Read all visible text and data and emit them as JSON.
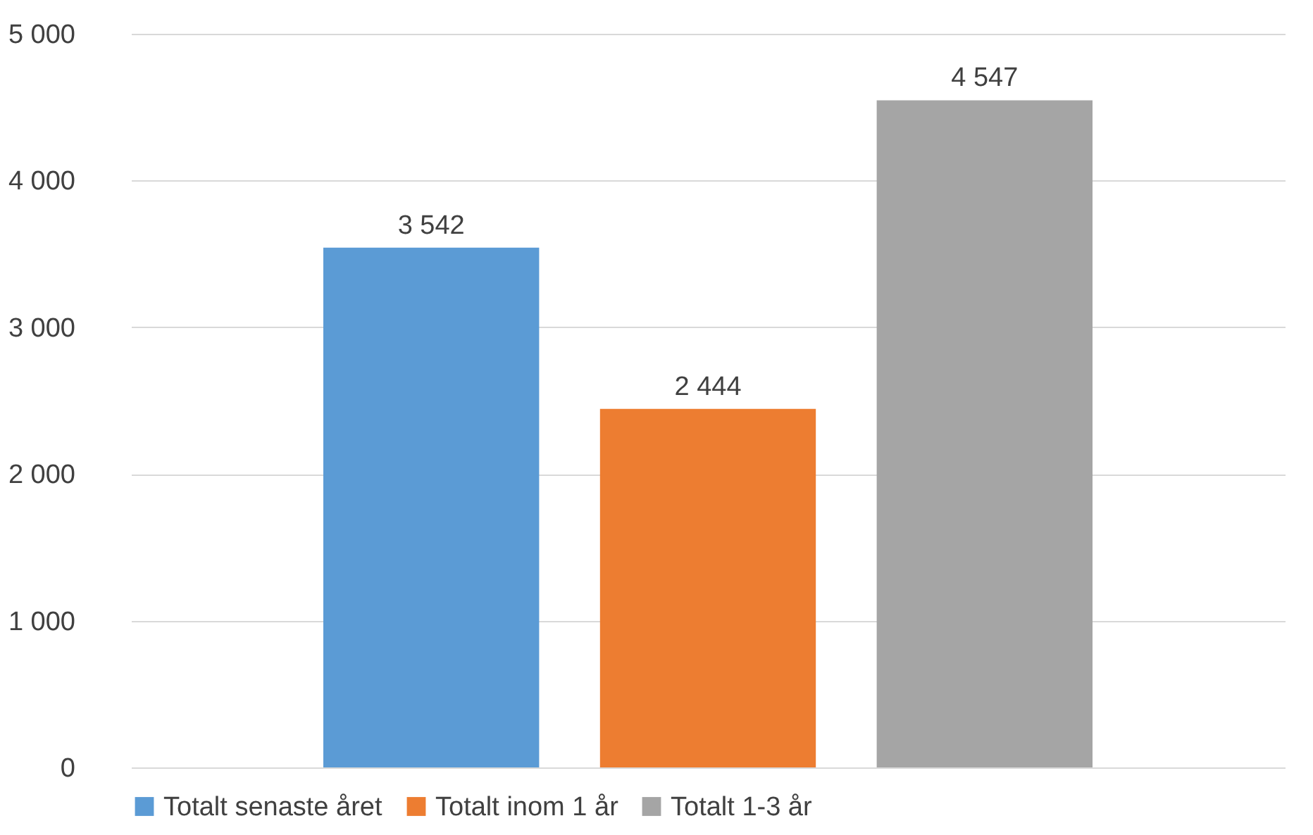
{
  "chart_data": {
    "type": "bar",
    "categories": [
      null
    ],
    "series": [
      {
        "name": "Totalt senaste året",
        "color": "#5b9bd5",
        "values": [
          3542
        ],
        "value_labels": [
          "3 542"
        ]
      },
      {
        "name": "Totalt inom 1 år",
        "color": "#ed7d31",
        "values": [
          2444
        ],
        "value_labels": [
          "2 444"
        ]
      },
      {
        "name": "Totalt 1-3 år",
        "color": "#a5a5a5",
        "values": [
          4547
        ],
        "value_labels": [
          "4 547"
        ]
      }
    ],
    "ylim": [
      0,
      5000
    ],
    "yticks": [
      0,
      {
        "value": 1000,
        "label": "1 000"
      },
      {
        "value": 2000,
        "label": "2 000"
      },
      {
        "value": 3000,
        "label": "3 000"
      },
      {
        "value": 4000,
        "label": "4 000"
      },
      {
        "value": 5000,
        "label": "5 000"
      }
    ],
    "grid": "y",
    "legend": "bottom"
  }
}
